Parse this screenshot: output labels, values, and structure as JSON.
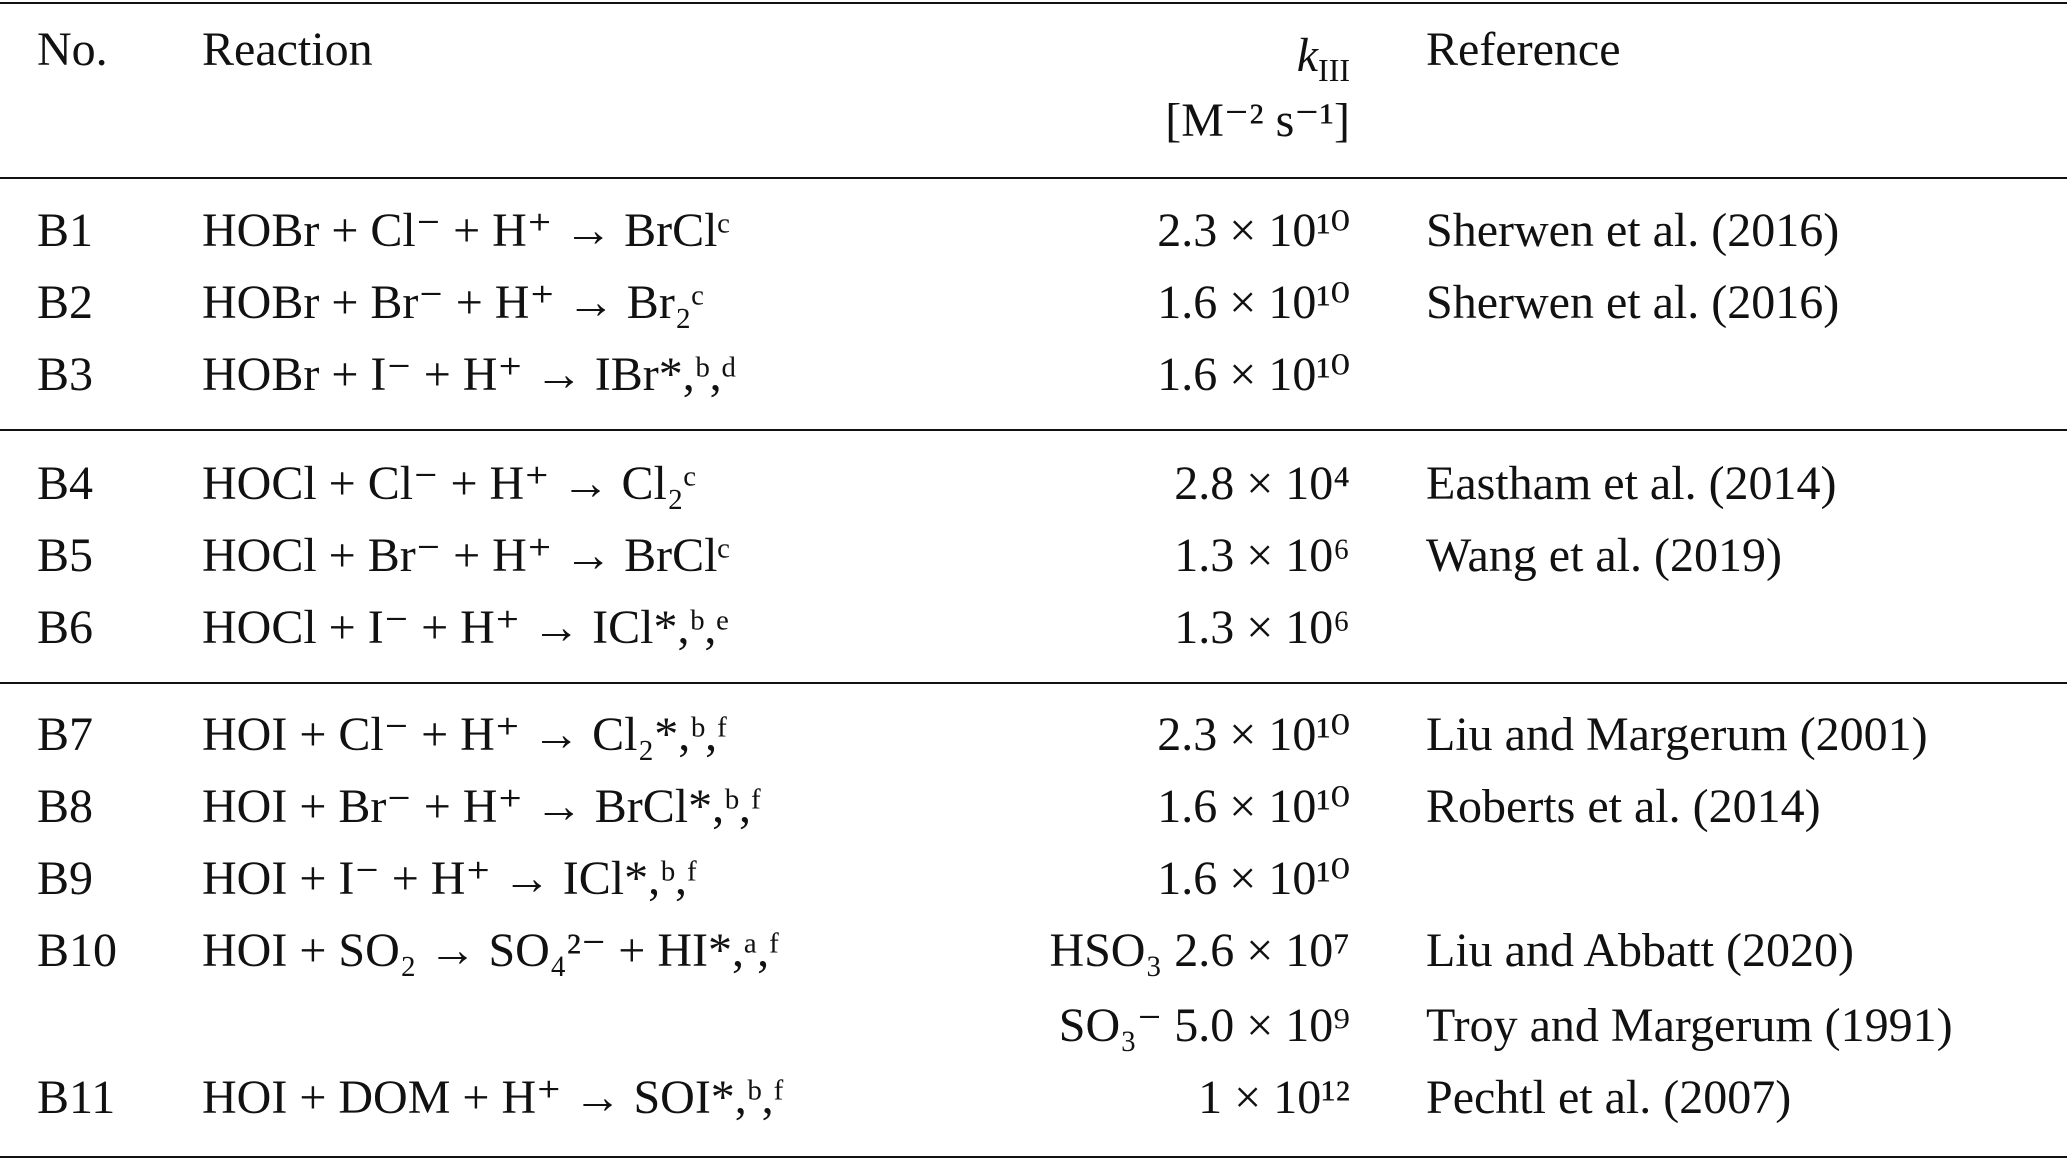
{
  "table": {
    "header": {
      "no": "No.",
      "reaction": "Reaction",
      "k": {
        "symbol": "k",
        "subscript": "III",
        "unit": "[M⁻² s⁻¹]"
      },
      "reference": "Reference"
    },
    "groups": [
      [
        {
          "no": "B1",
          "reaction": "HOBr + Cl⁻ + H⁺ → BrClᶜ",
          "k": [
            "2.3 × 10¹⁰"
          ],
          "reference": [
            "Sherwen et al. (2016)"
          ]
        },
        {
          "no": "B2",
          "reaction": "HOBr + Br⁻ + H⁺ → Br₂ᶜ",
          "k": [
            "1.6 × 10¹⁰"
          ],
          "reference": [
            "Sherwen et al. (2016)"
          ]
        },
        {
          "no": "B3",
          "reaction": "HOBr + I⁻ + H⁺ → IBr*,ᵇ,ᵈ",
          "k": [
            "1.6 × 10¹⁰"
          ],
          "reference": []
        }
      ],
      [
        {
          "no": "B4",
          "reaction": "HOCl + Cl⁻ + H⁺ → Cl₂ᶜ",
          "k": [
            "2.8 × 10⁴"
          ],
          "reference": [
            "Eastham et al. (2014)"
          ]
        },
        {
          "no": "B5",
          "reaction": "HOCl + Br⁻ + H⁺ → BrClᶜ",
          "k": [
            "1.3 × 10⁶"
          ],
          "reference": [
            "Wang et al. (2019)"
          ]
        },
        {
          "no": "B6",
          "reaction": "HOCl + I⁻ + H⁺ → ICl*,ᵇ,ᵉ",
          "k": [
            "1.3 × 10⁶"
          ],
          "reference": []
        }
      ],
      [
        {
          "no": "B7",
          "reaction": "HOI + Cl⁻ + H⁺ → Cl₂*,ᵇ,ᶠ",
          "k": [
            "2.3 × 10¹⁰"
          ],
          "reference": [
            "Liu and Margerum (2001)"
          ]
        },
        {
          "no": "B8",
          "reaction": "HOI + Br⁻ + H⁺ → BrCl*,ᵇ,ᶠ",
          "k": [
            "1.6 × 10¹⁰"
          ],
          "reference": [
            "Roberts et al. (2014)"
          ]
        },
        {
          "no": "B9",
          "reaction": "HOI + I⁻ + H⁺ → ICl*,ᵇ,ᶠ",
          "k": [
            "1.6 × 10¹⁰"
          ],
          "reference": []
        },
        {
          "no": "B10",
          "reaction": "HOI + SO₂ → SO₄²⁻ + HI*,ᵃ,ᶠ",
          "k": [
            "HSO₃ 2.6 × 10⁷",
            "SO₃⁻ 5.0 × 10⁹"
          ],
          "reference": [
            "Liu and Abbatt (2020)",
            "Troy and Margerum (1991)"
          ]
        },
        {
          "no": "B11",
          "reaction": "HOI + DOM + H⁺ → SOI*,ᵇ,ᶠ",
          "k": [
            "1 × 10¹²"
          ],
          "reference": [
            "Pechtl et al. (2007)"
          ]
        }
      ]
    ]
  }
}
